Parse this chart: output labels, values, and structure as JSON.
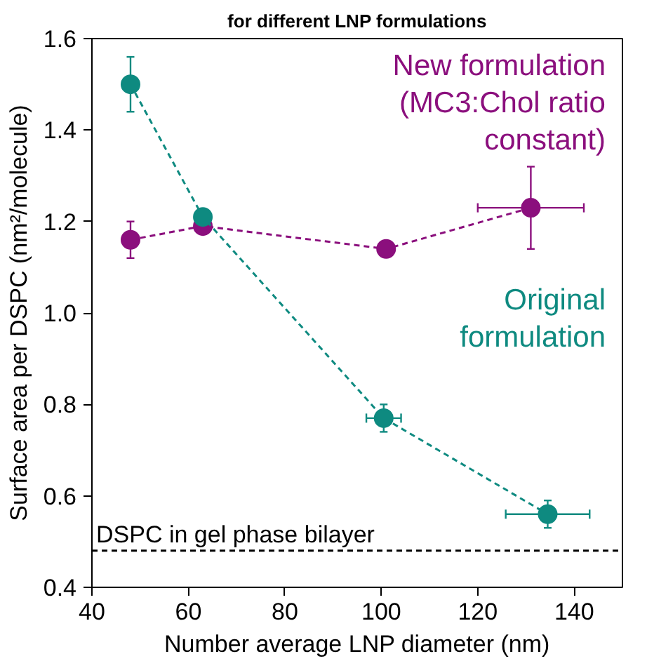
{
  "chart_data": {
    "type": "line",
    "title": "for different LNP formulations",
    "xlabel": "Number average LNP diameter (nm)",
    "ylabel": "Surface area per DSPC (nm²/molecule)",
    "xlim": [
      40,
      150
    ],
    "xticks": [
      40,
      60,
      80,
      100,
      120,
      140
    ],
    "ylim": [
      0.4,
      1.6
    ],
    "yticks": [
      0.4,
      0.6,
      0.8,
      {
        "value": 1.0,
        "label": "1.0"
      },
      1.2,
      1.4,
      1.6
    ],
    "grid": false,
    "marker": "circle",
    "line_style": "dashed",
    "series": [
      {
        "name": "New formulation\n(MC3:Chol ratio\nconstant)",
        "color": "#8b0f7d",
        "x": [
          48,
          63,
          101,
          131
        ],
        "values": [
          1.16,
          1.19,
          1.14,
          1.23
        ],
        "errors": [
          0.04,
          null,
          null,
          0.09
        ],
        "xerrors": [
          null,
          null,
          null,
          11
        ]
      },
      {
        "name": "Original\nformulation",
        "color": "#0e8a80",
        "x": [
          48,
          63,
          100.5,
          134.5
        ],
        "values": [
          1.5,
          1.21,
          0.77,
          0.56
        ],
        "errors": [
          0.06,
          null,
          0.03,
          0.03
        ],
        "xerrors": [
          null,
          null,
          3.6,
          8.7
        ]
      }
    ],
    "ref_lines": [
      {
        "axis": "y",
        "value": 0.48,
        "label": "DSPC in gel phase bilayer",
        "color": "#000000",
        "line_style": "dashed"
      }
    ]
  }
}
